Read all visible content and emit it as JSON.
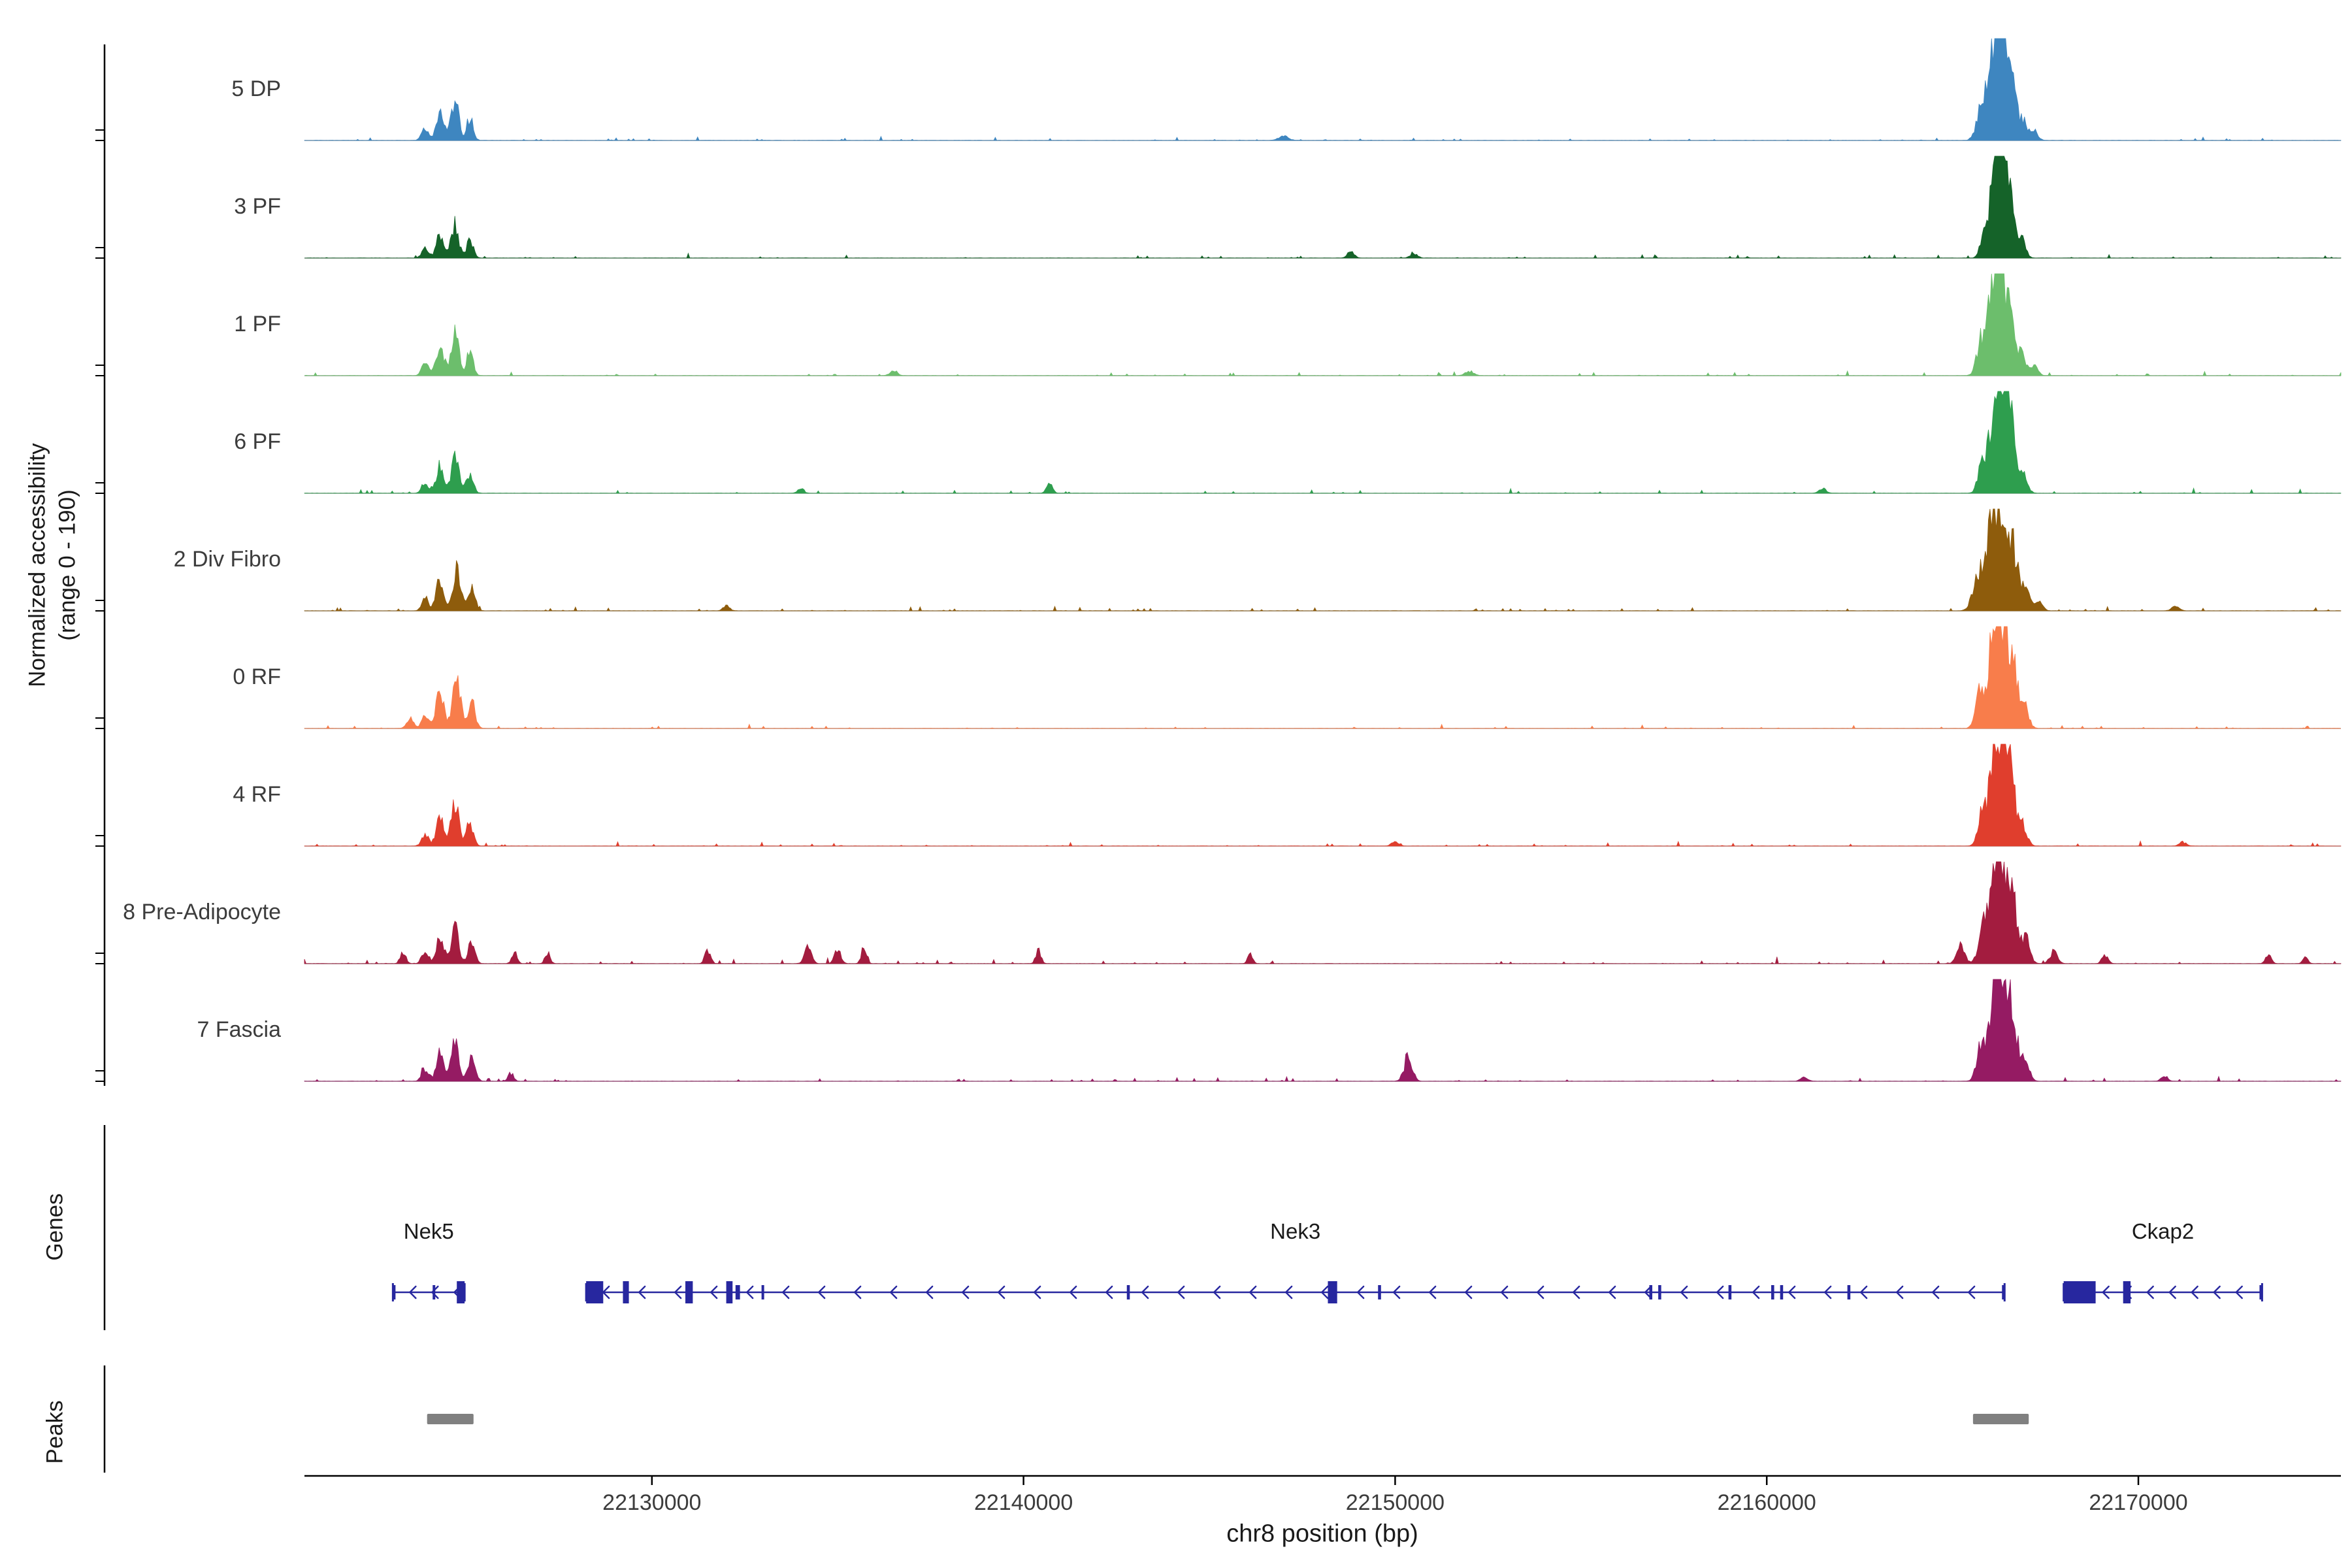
{
  "labels": {
    "y_axis_line1": "Normalized accessibility",
    "y_axis_line2": "(range 0 - 190)",
    "genes": "Genes",
    "peaks": "Peaks",
    "xlabel": "chr8 position (bp)"
  },
  "chart_data": {
    "type": "area",
    "title": "",
    "region": {
      "chrom": "chr8",
      "start": 22120650,
      "end": 22175450
    },
    "x_ticks": [
      22130000,
      22140000,
      22150000,
      22160000,
      22170000
    ],
    "y_range_per_track": [
      0,
      190
    ],
    "colors": {
      "gene": "#27279F",
      "peak_bar": "#808080",
      "baseline": "#9A9A9A",
      "axis": "#000000",
      "tick_text": "#3C3C3C",
      "track_label_text": "#3C3C3C"
    },
    "tracks": [
      {
        "label": "5 DP",
        "color": "#3E86C0",
        "noise": 0.018,
        "seed": 1,
        "peaks": [
          [
            22123900,
            0.12,
            200
          ],
          [
            22124300,
            0.3,
            220
          ],
          [
            22124700,
            0.42,
            220
          ],
          [
            22125100,
            0.22,
            200
          ],
          [
            22147000,
            0.04,
            300
          ],
          [
            22165770,
            0.35,
            260
          ],
          [
            22166070,
            0.75,
            280
          ],
          [
            22166300,
            1.0,
            300
          ],
          [
            22166570,
            0.6,
            260
          ],
          [
            22166870,
            0.22,
            240
          ],
          [
            22167190,
            0.1,
            220
          ]
        ]
      },
      {
        "label": "3 PF",
        "color": "#156329",
        "noise": 0.02,
        "seed": 2,
        "peaks": [
          [
            22123900,
            0.1,
            200
          ],
          [
            22124300,
            0.24,
            220
          ],
          [
            22124700,
            0.34,
            220
          ],
          [
            22125100,
            0.18,
            200
          ],
          [
            22148800,
            0.07,
            200
          ],
          [
            22150500,
            0.05,
            200
          ],
          [
            22165870,
            0.3,
            240
          ],
          [
            22166120,
            0.7,
            260
          ],
          [
            22166320,
            1.0,
            280
          ],
          [
            22166570,
            0.55,
            240
          ],
          [
            22166870,
            0.18,
            220
          ]
        ]
      },
      {
        "label": "1 PF",
        "color": "#6CBE6C",
        "noise": 0.02,
        "seed": 3,
        "peaks": [
          [
            22123900,
            0.13,
            200
          ],
          [
            22124300,
            0.33,
            220
          ],
          [
            22124700,
            0.46,
            220
          ],
          [
            22125100,
            0.24,
            200
          ],
          [
            22136500,
            0.06,
            200
          ],
          [
            22152000,
            0.04,
            250
          ],
          [
            22165770,
            0.35,
            260
          ],
          [
            22166070,
            0.75,
            280
          ],
          [
            22166300,
            1.0,
            300
          ],
          [
            22166570,
            0.62,
            260
          ],
          [
            22166870,
            0.22,
            240
          ],
          [
            22167190,
            0.1,
            220
          ]
        ]
      },
      {
        "label": "6 PF",
        "color": "#2E9E4E",
        "noise": 0.022,
        "seed": 4,
        "peaks": [
          [
            22123900,
            0.11,
            200
          ],
          [
            22124300,
            0.27,
            220
          ],
          [
            22124700,
            0.38,
            220
          ],
          [
            22125100,
            0.2,
            200
          ],
          [
            22134000,
            0.05,
            180
          ],
          [
            22140700,
            0.09,
            180
          ],
          [
            22161500,
            0.05,
            200
          ],
          [
            22165820,
            0.33,
            260
          ],
          [
            22166120,
            0.72,
            280
          ],
          [
            22166340,
            1.0,
            300
          ],
          [
            22166600,
            0.58,
            260
          ],
          [
            22166900,
            0.2,
            240
          ]
        ]
      },
      {
        "label": "2 Div Fibro",
        "color": "#8E5C0C",
        "noise": 0.022,
        "seed": 5,
        "peaks": [
          [
            22123900,
            0.13,
            200
          ],
          [
            22124300,
            0.32,
            230
          ],
          [
            22124750,
            0.44,
            230
          ],
          [
            22125150,
            0.22,
            210
          ],
          [
            22132000,
            0.05,
            200
          ],
          [
            22171000,
            0.05,
            220
          ],
          [
            22165670,
            0.35,
            300
          ],
          [
            22166020,
            0.78,
            320
          ],
          [
            22166300,
            1.0,
            340
          ],
          [
            22166600,
            0.62,
            300
          ],
          [
            22166940,
            0.24,
            260
          ],
          [
            22167320,
            0.1,
            220
          ]
        ]
      },
      {
        "label": "0 RF",
        "color": "#F87D4B",
        "noise": 0.02,
        "seed": 6,
        "peaks": [
          [
            22123500,
            0.1,
            200
          ],
          [
            22123900,
            0.15,
            210
          ],
          [
            22124300,
            0.38,
            230
          ],
          [
            22124750,
            0.5,
            230
          ],
          [
            22125150,
            0.28,
            210
          ],
          [
            22165770,
            0.38,
            280
          ],
          [
            22166100,
            0.8,
            300
          ],
          [
            22166340,
            1.0,
            320
          ],
          [
            22166620,
            0.62,
            280
          ],
          [
            22166940,
            0.22,
            240
          ]
        ]
      },
      {
        "label": "4 RF",
        "color": "#E03E2D",
        "noise": 0.022,
        "seed": 7,
        "peaks": [
          [
            22123900,
            0.12,
            200
          ],
          [
            22124300,
            0.3,
            220
          ],
          [
            22124700,
            0.44,
            220
          ],
          [
            22125100,
            0.24,
            200
          ],
          [
            22150000,
            0.05,
            200
          ],
          [
            22171200,
            0.04,
            200
          ],
          [
            22165820,
            0.35,
            260
          ],
          [
            22166120,
            0.75,
            280
          ],
          [
            22166340,
            1.0,
            300
          ],
          [
            22166600,
            0.6,
            260
          ],
          [
            22166900,
            0.2,
            240
          ]
        ]
      },
      {
        "label": "8 Pre-Adipocyte",
        "color": "#A31C3F",
        "noise": 0.03,
        "seed": 8,
        "peaks": [
          [
            22123300,
            0.12,
            160
          ],
          [
            22123900,
            0.13,
            200
          ],
          [
            22124300,
            0.28,
            220
          ],
          [
            22124700,
            0.38,
            220
          ],
          [
            22125150,
            0.22,
            200
          ],
          [
            22126300,
            0.1,
            160
          ],
          [
            22127200,
            0.1,
            150
          ],
          [
            22131500,
            0.14,
            160
          ],
          [
            22134200,
            0.18,
            200
          ],
          [
            22135000,
            0.16,
            180
          ],
          [
            22135700,
            0.13,
            160
          ],
          [
            22140400,
            0.14,
            150
          ],
          [
            22146100,
            0.11,
            140
          ],
          [
            22165220,
            0.2,
            240
          ],
          [
            22165820,
            0.4,
            260
          ],
          [
            22166120,
            0.8,
            280
          ],
          [
            22166340,
            1.0,
            300
          ],
          [
            22166620,
            0.65,
            260
          ],
          [
            22166970,
            0.25,
            240
          ],
          [
            22167720,
            0.12,
            220
          ],
          [
            22169100,
            0.08,
            180
          ],
          [
            22173500,
            0.09,
            160
          ],
          [
            22174500,
            0.06,
            150
          ]
        ]
      },
      {
        "label": "7 Fascia",
        "color": "#951B63",
        "noise": 0.025,
        "seed": 9,
        "peaks": [
          [
            22123900,
            0.13,
            200
          ],
          [
            22124300,
            0.3,
            220
          ],
          [
            22124700,
            0.42,
            230
          ],
          [
            22125150,
            0.24,
            210
          ],
          [
            22126200,
            0.08,
            160
          ],
          [
            22150350,
            0.24,
            240
          ],
          [
            22161000,
            0.05,
            200
          ],
          [
            22165770,
            0.35,
            260
          ],
          [
            22166100,
            0.78,
            290
          ],
          [
            22166340,
            1.0,
            310
          ],
          [
            22166620,
            0.62,
            270
          ],
          [
            22166960,
            0.22,
            240
          ],
          [
            22170700,
            0.06,
            180
          ]
        ]
      }
    ],
    "genes": [
      {
        "name": "Nek5",
        "start": 22123030,
        "end": 22124960,
        "strand": "-",
        "exons": [
          [
            22124750,
            22124960,
            1
          ],
          [
            22124100,
            22124160,
            0
          ],
          [
            22123030,
            22123100,
            0
          ]
        ]
      },
      {
        "name": "Nek3",
        "start": 22128230,
        "end": 22166400,
        "strand": "-",
        "exons": [
          [
            22128230,
            22128690,
            1
          ],
          [
            22129220,
            22129380,
            1
          ],
          [
            22130900,
            22131100,
            1
          ],
          [
            22132000,
            22132170,
            1
          ],
          [
            22132250,
            22132370,
            0
          ],
          [
            22132950,
            22133020,
            0
          ],
          [
            22142780,
            22142860,
            0
          ],
          [
            22148190,
            22148440,
            1
          ],
          [
            22149540,
            22149620,
            0
          ],
          [
            22156840,
            22156920,
            0
          ],
          [
            22157080,
            22157160,
            0
          ],
          [
            22158970,
            22159050,
            0
          ],
          [
            22160120,
            22160200,
            0
          ],
          [
            22160360,
            22160440,
            0
          ],
          [
            22162170,
            22162250,
            0
          ],
          [
            22166330,
            22166400,
            0
          ]
        ]
      },
      {
        "name": "Ckap2",
        "start": 22167990,
        "end": 22173330,
        "strand": "-",
        "exons": [
          [
            22167990,
            22168850,
            1
          ],
          [
            22169590,
            22169790,
            1
          ],
          [
            22173260,
            22173330,
            0
          ]
        ]
      }
    ],
    "peaks_intervals": [
      {
        "start": 22123950,
        "end": 22125200
      },
      {
        "start": 22165550,
        "end": 22167050
      }
    ]
  }
}
